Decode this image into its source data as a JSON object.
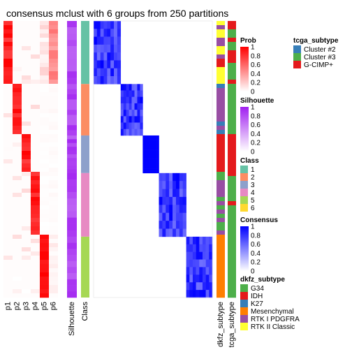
{
  "chart_data": {
    "type": "heatmap",
    "title": "consensus mclust with 6 groups from 250 partitions",
    "columns": {
      "prob": [
        "p1",
        "p2",
        "p3",
        "p4",
        "p5",
        "p6"
      ],
      "silhouette": "Silhouette",
      "class": "Class",
      "dkfz": "dkfz_subtype",
      "tcga": "tcga_subtype"
    },
    "class_blocks": [
      {
        "class": "1",
        "fraction": 0.228
      },
      {
        "class": "2",
        "fraction": 0.186
      },
      {
        "class": "3",
        "fraction": 0.136
      },
      {
        "class": "4",
        "fraction": 0.23
      },
      {
        "class": "5",
        "fraction": 0.22
      }
    ],
    "legends": {
      "prob": {
        "title": "Prob",
        "ticks": [
          "1",
          "0.8",
          "0.6",
          "0.4",
          "0.2",
          "0"
        ],
        "low": "#ffffff",
        "high": "#ff0000"
      },
      "silhouette": {
        "title": "Silhouette",
        "ticks": [
          "1",
          "0.8",
          "0.6",
          "0.4",
          "0.2",
          "0"
        ],
        "low": "#ffffff",
        "high": "#a020f0"
      },
      "class": {
        "title": "Class",
        "items": [
          {
            "label": "1",
            "color": "#66c2a5"
          },
          {
            "label": "2",
            "color": "#fc8d62"
          },
          {
            "label": "3",
            "color": "#8da0cb"
          },
          {
            "label": "4",
            "color": "#e78ac3"
          },
          {
            "label": "5",
            "color": "#a6d854"
          },
          {
            "label": "6",
            "color": "#ffd92f"
          }
        ]
      },
      "consensus": {
        "title": "Consensus",
        "ticks": [
          "1",
          "0.8",
          "0.6",
          "0.4",
          "0.2",
          "0"
        ],
        "low": "#ffffff",
        "high": "#0000ff"
      },
      "dkfz_subtype": {
        "title": "dkfz_subtype",
        "items": [
          {
            "label": "G34",
            "color": "#4daf4a"
          },
          {
            "label": "IDH",
            "color": "#e41a1c"
          },
          {
            "label": "K27",
            "color": "#377eb8"
          },
          {
            "label": "Mesenchymal",
            "color": "#ff7f00"
          },
          {
            "label": "RTK I PDGFRA",
            "color": "#984ea3"
          },
          {
            "label": "RTK II Classic",
            "color": "#ffff33"
          }
        ]
      },
      "tcga_subtype": {
        "title": "tcga_subtype",
        "items": [
          {
            "label": "Cluster #2",
            "color": "#377eb8"
          },
          {
            "label": "Cluster #3",
            "color": "#4daf4a"
          },
          {
            "label": "G-CIMP+",
            "color": "#e41a1c"
          }
        ]
      }
    }
  }
}
